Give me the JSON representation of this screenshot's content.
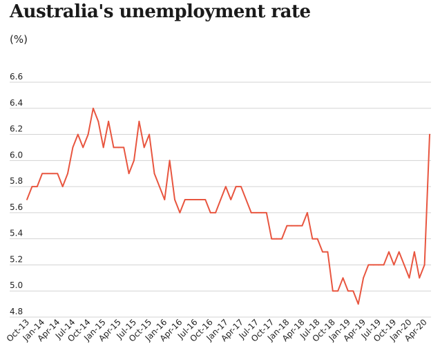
{
  "title": "Australia's unemployment rate",
  "unit_label": "(%)",
  "colors": {
    "line": "#e8553f",
    "grid": "#d3d3d3",
    "text": "#222222"
  },
  "chart_data": {
    "type": "line",
    "title": "Australia's unemployment rate",
    "ylabel": "(%)",
    "xlabel": "",
    "ylim": [
      4.8,
      6.6
    ],
    "yticks": [
      4.8,
      5.0,
      5.2,
      5.4,
      5.6,
      5.8,
      6.0,
      6.2,
      6.4,
      6.6
    ],
    "ytick_labels": [
      "4.8",
      "5.0",
      "5.2",
      "5.4",
      "5.6",
      "5.8",
      "6.0",
      "6.2",
      "6.4",
      "6.6"
    ],
    "xtick_labels": [
      "Oct-13",
      "Jan-14",
      "Apr-14",
      "Jul-14",
      "Oct-14",
      "Jan-15",
      "Apr-15",
      "Jul-15",
      "Oct-15",
      "Jan-16",
      "Apr-16",
      "Jul-16",
      "Oct-16",
      "Jan-17",
      "Apr-17",
      "Jul-17",
      "Oct-17",
      "Jan-18",
      "Apr-18",
      "Jul-18",
      "Oct-18",
      "Jan-19",
      "Apr-19",
      "Jul-19",
      "Oct-19",
      "Jan-20",
      "Apr-20"
    ],
    "grid": true,
    "legend": "none",
    "series": [
      {
        "start": "Oct-13",
        "frequency": "monthly",
        "values": [
          5.7,
          5.8,
          5.8,
          5.9,
          5.9,
          5.9,
          5.9,
          5.8,
          5.9,
          6.1,
          6.2,
          6.1,
          6.2,
          6.4,
          6.3,
          6.1,
          6.3,
          6.1,
          6.1,
          6.1,
          5.9,
          6.0,
          6.3,
          6.1,
          6.2,
          5.9,
          5.8,
          5.7,
          6.0,
          5.7,
          5.6,
          5.7,
          5.7,
          5.7,
          5.7,
          5.7,
          5.6,
          5.6,
          5.7,
          5.8,
          5.7,
          5.8,
          5.8,
          5.7,
          5.6,
          5.6,
          5.6,
          5.6,
          5.4,
          5.4,
          5.4,
          5.5,
          5.5,
          5.5,
          5.5,
          5.6,
          5.4,
          5.4,
          5.3,
          5.3,
          5.0,
          5.0,
          5.1,
          5.0,
          5.0,
          4.9,
          5.1,
          5.2,
          5.2,
          5.2,
          5.2,
          5.3,
          5.2,
          5.3,
          5.2,
          5.1,
          5.3,
          5.1,
          5.2,
          6.2
        ]
      }
    ]
  }
}
